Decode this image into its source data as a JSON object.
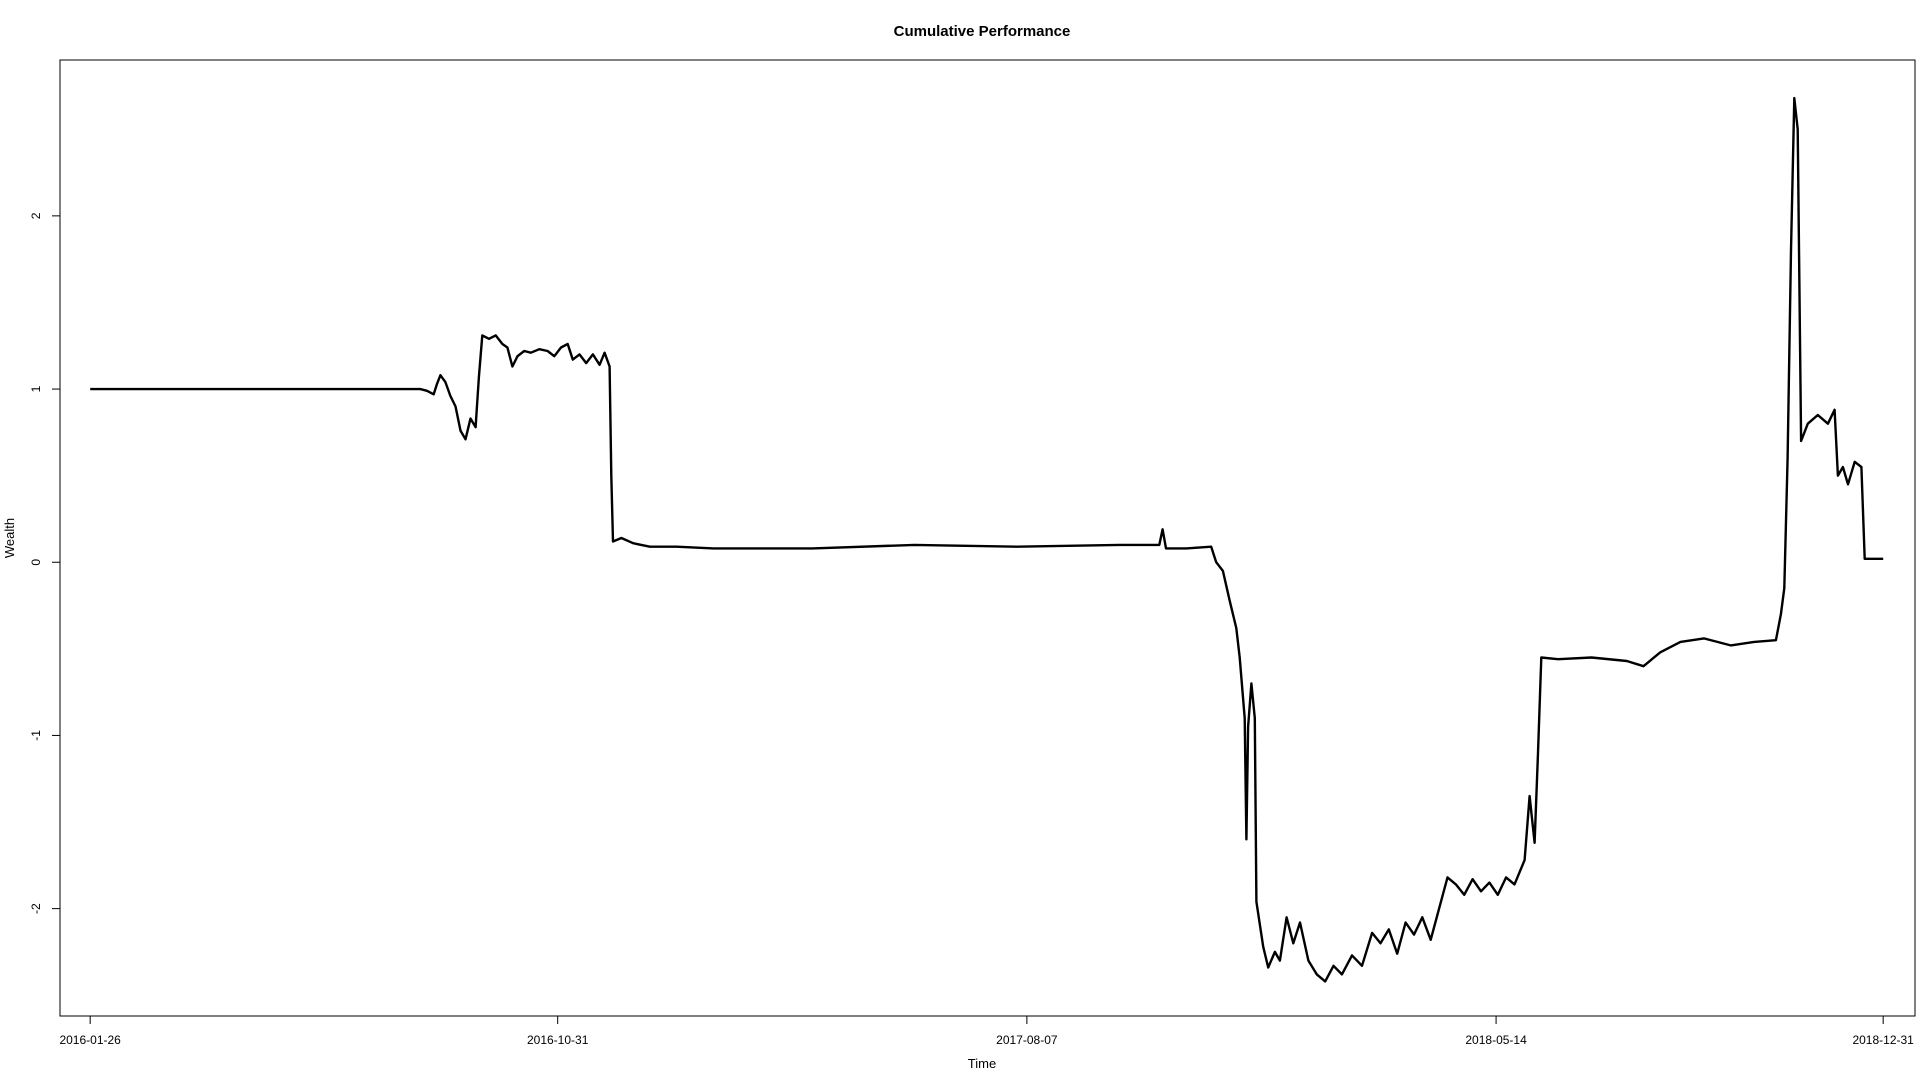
{
  "chart_data": {
    "type": "line",
    "title": "Cumulative Performance",
    "xlabel": "Time",
    "ylabel": "Wealth",
    "x_ticks": [
      "2016-01-26",
      "2016-10-31",
      "2017-08-07",
      "2018-05-14",
      "2018-12-31"
    ],
    "y_ticks": [
      "-2",
      "-1",
      "0",
      "1",
      "2"
    ],
    "xlim": [
      "2016-01-08",
      "2019-01-19"
    ],
    "ylim": [
      -2.62,
      2.9
    ],
    "grid": false,
    "series": [
      {
        "color": "#000000",
        "points": [
          [
            "2016-01-26",
            1.0
          ],
          [
            "2016-03-15",
            1.0
          ],
          [
            "2016-06-01",
            1.0
          ],
          [
            "2016-08-10",
            1.0
          ],
          [
            "2016-08-14",
            0.99
          ],
          [
            "2016-08-18",
            0.97
          ],
          [
            "2016-08-20",
            1.03
          ],
          [
            "2016-08-22",
            1.08
          ],
          [
            "2016-08-25",
            1.04
          ],
          [
            "2016-08-28",
            0.96
          ],
          [
            "2016-08-31",
            0.9
          ],
          [
            "2016-09-03",
            0.76
          ],
          [
            "2016-09-06",
            0.71
          ],
          [
            "2016-09-09",
            0.83
          ],
          [
            "2016-09-12",
            0.78
          ],
          [
            "2016-09-14",
            1.07
          ],
          [
            "2016-09-16",
            1.31
          ],
          [
            "2016-09-20",
            1.29
          ],
          [
            "2016-09-24",
            1.31
          ],
          [
            "2016-09-28",
            1.26
          ],
          [
            "2016-10-01",
            1.24
          ],
          [
            "2016-10-04",
            1.13
          ],
          [
            "2016-10-07",
            1.19
          ],
          [
            "2016-10-11",
            1.22
          ],
          [
            "2016-10-15",
            1.21
          ],
          [
            "2016-10-20",
            1.23
          ],
          [
            "2016-10-25",
            1.22
          ],
          [
            "2016-10-29",
            1.19
          ],
          [
            "2016-11-02",
            1.24
          ],
          [
            "2016-11-06",
            1.26
          ],
          [
            "2016-11-09",
            1.17
          ],
          [
            "2016-11-13",
            1.2
          ],
          [
            "2016-11-17",
            1.15
          ],
          [
            "2016-11-21",
            1.2
          ],
          [
            "2016-11-25",
            1.14
          ],
          [
            "2016-11-28",
            1.21
          ],
          [
            "2016-12-01",
            1.13
          ],
          [
            "2016-12-02",
            0.5
          ],
          [
            "2016-12-03",
            0.12
          ],
          [
            "2016-12-08",
            0.14
          ],
          [
            "2016-12-15",
            0.11
          ],
          [
            "2016-12-25",
            0.09
          ],
          [
            "2017-01-10",
            0.09
          ],
          [
            "2017-02-01",
            0.08
          ],
          [
            "2017-04-01",
            0.08
          ],
          [
            "2017-06-01",
            0.1
          ],
          [
            "2017-08-01",
            0.09
          ],
          [
            "2017-10-01",
            0.1
          ],
          [
            "2017-10-25",
            0.1
          ],
          [
            "2017-10-27",
            0.19
          ],
          [
            "2017-10-29",
            0.08
          ],
          [
            "2017-11-10",
            0.08
          ],
          [
            "2017-11-25",
            0.09
          ],
          [
            "2017-11-28",
            0.0
          ],
          [
            "2017-12-02",
            -0.05
          ],
          [
            "2017-12-06",
            -0.22
          ],
          [
            "2017-12-10",
            -0.38
          ],
          [
            "2017-12-12",
            -0.55
          ],
          [
            "2017-12-15",
            -0.9
          ],
          [
            "2017-12-16",
            -1.6
          ],
          [
            "2017-12-17",
            -0.95
          ],
          [
            "2017-12-19",
            -0.7
          ],
          [
            "2017-12-21",
            -0.9
          ],
          [
            "2017-12-22",
            -1.96
          ],
          [
            "2017-12-26",
            -2.22
          ],
          [
            "2017-12-29",
            -2.34
          ],
          [
            "2018-01-02",
            -2.25
          ],
          [
            "2018-01-05",
            -2.3
          ],
          [
            "2018-01-09",
            -2.05
          ],
          [
            "2018-01-13",
            -2.2
          ],
          [
            "2018-01-17",
            -2.08
          ],
          [
            "2018-01-22",
            -2.3
          ],
          [
            "2018-01-27",
            -2.38
          ],
          [
            "2018-02-01",
            -2.42
          ],
          [
            "2018-02-06",
            -2.33
          ],
          [
            "2018-02-11",
            -2.38
          ],
          [
            "2018-02-17",
            -2.27
          ],
          [
            "2018-02-23",
            -2.33
          ],
          [
            "2018-03-01",
            -2.14
          ],
          [
            "2018-03-06",
            -2.2
          ],
          [
            "2018-03-11",
            -2.12
          ],
          [
            "2018-03-16",
            -2.26
          ],
          [
            "2018-03-21",
            -2.08
          ],
          [
            "2018-03-26",
            -2.15
          ],
          [
            "2018-03-31",
            -2.05
          ],
          [
            "2018-04-05",
            -2.18
          ],
          [
            "2018-04-10",
            -2.0
          ],
          [
            "2018-04-15",
            -1.82
          ],
          [
            "2018-04-20",
            -1.86
          ],
          [
            "2018-04-25",
            -1.92
          ],
          [
            "2018-04-30",
            -1.83
          ],
          [
            "2018-05-05",
            -1.9
          ],
          [
            "2018-05-10",
            -1.85
          ],
          [
            "2018-05-15",
            -1.92
          ],
          [
            "2018-05-20",
            -1.82
          ],
          [
            "2018-05-25",
            -1.86
          ],
          [
            "2018-05-31",
            -1.72
          ],
          [
            "2018-06-03",
            -1.35
          ],
          [
            "2018-06-06",
            -1.62
          ],
          [
            "2018-06-08",
            -1.1
          ],
          [
            "2018-06-10",
            -0.55
          ],
          [
            "2018-06-20",
            -0.56
          ],
          [
            "2018-07-10",
            -0.55
          ],
          [
            "2018-07-31",
            -0.57
          ],
          [
            "2018-08-10",
            -0.6
          ],
          [
            "2018-08-20",
            -0.52
          ],
          [
            "2018-09-01",
            -0.46
          ],
          [
            "2018-09-15",
            -0.44
          ],
          [
            "2018-10-01",
            -0.48
          ],
          [
            "2018-10-15",
            -0.46
          ],
          [
            "2018-10-28",
            -0.45
          ],
          [
            "2018-10-31",
            -0.3
          ],
          [
            "2018-11-02",
            -0.15
          ],
          [
            "2018-11-04",
            0.6
          ],
          [
            "2018-11-06",
            1.8
          ],
          [
            "2018-11-08",
            2.68
          ],
          [
            "2018-11-10",
            2.5
          ],
          [
            "2018-11-12",
            0.7
          ],
          [
            "2018-11-16",
            0.8
          ],
          [
            "2018-11-22",
            0.85
          ],
          [
            "2018-11-28",
            0.8
          ],
          [
            "2018-12-02",
            0.88
          ],
          [
            "2018-12-04",
            0.5
          ],
          [
            "2018-12-07",
            0.55
          ],
          [
            "2018-12-10",
            0.45
          ],
          [
            "2018-12-14",
            0.58
          ],
          [
            "2018-12-18",
            0.55
          ],
          [
            "2018-12-20",
            0.02
          ],
          [
            "2018-12-31",
            0.02
          ]
        ]
      }
    ]
  }
}
